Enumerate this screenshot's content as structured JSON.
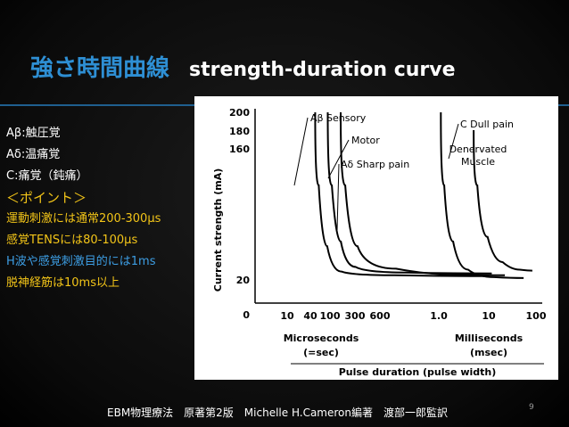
{
  "slide": {
    "title_jp": "強さ時間曲線",
    "title_en": "strength-duration curve",
    "page_number": "9",
    "citation": "EBM物理療法　原著第2版　Michelle H.Cameron編著　渡部一郎監訳",
    "notes": [
      {
        "text": "Aβ:触圧覚",
        "style": "white"
      },
      {
        "text": "Aδ:温痛覚",
        "style": "white"
      },
      {
        "text": "C:痛覚（鈍痛）",
        "style": "white"
      },
      {
        "text": "＜ポイント＞",
        "style": "yellow"
      },
      {
        "text": "運動刺激には通常200-300μs",
        "style": "yellow"
      },
      {
        "text": "感覚TENSには80-100μs",
        "style": "yellow"
      },
      {
        "text": "H波や感覚刺激目的には1ms",
        "style": "blue"
      },
      {
        "text": "脱神経筋は10ms以上",
        "style": "yellow"
      }
    ]
  },
  "chart_data": {
    "type": "line",
    "ylabel": "Current strength (mA)",
    "xlabel": "Pulse duration (pulse width)",
    "x_group_labels": [
      "Microseconds",
      "(=sec)",
      "Milliseconds",
      "(msec)"
    ],
    "x_ticks": [
      "10",
      "40",
      "100",
      "300",
      "600",
      "1.0",
      "10",
      "100"
    ],
    "y_ticks": [
      "200",
      "180",
      "160",
      "20",
      "0"
    ],
    "series": [
      {
        "name": "Aβ Sensory",
        "points": [
          [
            50,
            200
          ],
          [
            70,
            120
          ],
          [
            110,
            55
          ],
          [
            250,
            28
          ],
          [
            1000,
            24
          ],
          [
            100000,
            23
          ]
        ]
      },
      {
        "name": "Motor",
        "points": [
          [
            90,
            200
          ],
          [
            130,
            120
          ],
          [
            200,
            60
          ],
          [
            400,
            33
          ],
          [
            1500,
            27
          ],
          [
            100000,
            26
          ]
        ]
      },
      {
        "name": "Aδ Sharp pain",
        "points": [
          [
            160,
            200
          ],
          [
            240,
            120
          ],
          [
            400,
            55
          ],
          [
            900,
            31
          ],
          [
            5000,
            25
          ],
          [
            100000,
            24
          ]
        ]
      },
      {
        "name": "C Dull pain",
        "points": [
          [
            1100,
            200
          ],
          [
            1500,
            120
          ],
          [
            2500,
            60
          ],
          [
            6000,
            30
          ],
          [
            30000,
            22
          ],
          [
            100000,
            21
          ]
        ]
      },
      {
        "name": "Denervated Muscle",
        "points": [
          [
            5000,
            180
          ],
          [
            7000,
            120
          ],
          [
            13000,
            65
          ],
          [
            30000,
            38
          ],
          [
            70000,
            30
          ],
          [
            100000,
            29
          ]
        ]
      }
    ]
  }
}
